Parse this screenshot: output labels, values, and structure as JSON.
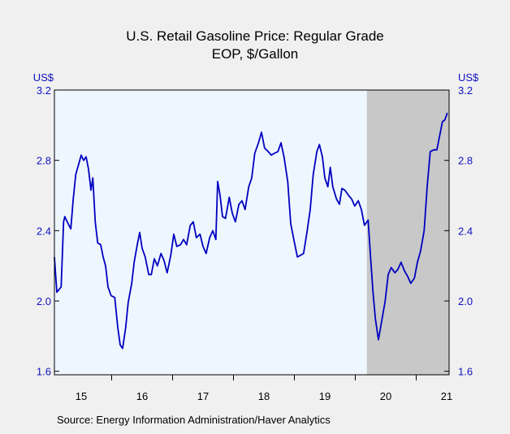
{
  "chart_data": {
    "type": "line",
    "title": "U.S. Retail Gasoline Price: Regular Grade",
    "subtitle": "EOP, $/Gallon",
    "y_unit_left": "US$",
    "y_unit_right": "US$",
    "source": "Source:  Energy Information Administration/Haver Analytics",
    "color": "#0000c0",
    "shade": {
      "start": 2020.19,
      "end": 2021.54,
      "color": "#c8c8c8"
    },
    "xlim": [
      2015.06,
      2021.54
    ],
    "ylim": [
      1.58,
      3.2
    ],
    "yticks": [
      1.6,
      {
        "value": 2,
        "label": "2.0"
      },
      2.4,
      2.8,
      3.2
    ],
    "xticks": [
      {
        "value": 2015.5,
        "label": "15"
      },
      {
        "value": 2016.5,
        "label": "16"
      },
      {
        "value": 2017.5,
        "label": "17"
      },
      {
        "value": 2018.5,
        "label": "18"
      },
      {
        "value": 2019.5,
        "label": "19"
      },
      {
        "value": 2020.5,
        "label": "20"
      },
      {
        "value": 2021.5,
        "label": "21"
      }
    ],
    "x": [
      2015.06,
      2015.1,
      2015.17,
      2015.21,
      2015.23,
      2015.27,
      2015.33,
      2015.37,
      2015.41,
      2015.46,
      2015.5,
      2015.54,
      2015.58,
      2015.62,
      2015.66,
      2015.69,
      2015.73,
      2015.77,
      2015.82,
      2015.86,
      2015.9,
      2015.94,
      2015.99,
      2016.05,
      2016.1,
      2016.14,
      2016.18,
      2016.23,
      2016.27,
      2016.33,
      2016.37,
      2016.42,
      2016.46,
      2016.5,
      2016.55,
      2016.61,
      2016.65,
      2016.7,
      2016.75,
      2016.81,
      2016.86,
      2016.91,
      2016.97,
      2017.02,
      2017.07,
      2017.13,
      2017.18,
      2017.23,
      2017.29,
      2017.34,
      2017.39,
      2017.45,
      2017.5,
      2017.55,
      2017.61,
      2017.66,
      2017.71,
      2017.74,
      2017.78,
      2017.82,
      2017.87,
      2017.93,
      2017.98,
      2018.03,
      2018.09,
      2018.14,
      2018.19,
      2018.25,
      2018.3,
      2018.35,
      2018.41,
      2018.46,
      2018.51,
      2018.57,
      2018.62,
      2018.67,
      2018.73,
      2018.78,
      2018.83,
      2018.89,
      2018.94,
      2018.99,
      2019.05,
      2019.1,
      2019.15,
      2019.21,
      2019.26,
      2019.31,
      2019.37,
      2019.41,
      2019.46,
      2019.5,
      2019.55,
      2019.59,
      2019.63,
      2019.69,
      2019.74,
      2019.78,
      2019.83,
      2019.89,
      2019.94,
      2019.99,
      2020.05,
      2020.1,
      2020.15,
      2020.21,
      2020.25,
      2020.29,
      2020.33,
      2020.38,
      2020.43,
      2020.49,
      2020.54,
      2020.59,
      2020.65,
      2020.7,
      2020.75,
      2020.81,
      2020.86,
      2020.91,
      2020.97,
      2021.02,
      2021.07,
      2021.13,
      2021.18,
      2021.23,
      2021.29,
      2021.34,
      2021.39,
      2021.43,
      2021.47,
      2021.51
    ],
    "values": [
      2.25,
      2.05,
      2.08,
      2.45,
      2.48,
      2.45,
      2.41,
      2.58,
      2.72,
      2.78,
      2.83,
      2.8,
      2.82,
      2.75,
      2.63,
      2.7,
      2.45,
      2.33,
      2.32,
      2.25,
      2.2,
      2.08,
      2.03,
      2.02,
      1.85,
      1.75,
      1.73,
      1.85,
      1.99,
      2.1,
      2.22,
      2.32,
      2.39,
      2.3,
      2.25,
      2.15,
      2.15,
      2.24,
      2.2,
      2.27,
      2.23,
      2.16,
      2.26,
      2.38,
      2.31,
      2.32,
      2.35,
      2.32,
      2.43,
      2.45,
      2.36,
      2.38,
      2.31,
      2.27,
      2.36,
      2.4,
      2.35,
      2.68,
      2.6,
      2.48,
      2.47,
      2.59,
      2.5,
      2.45,
      2.55,
      2.57,
      2.52,
      2.65,
      2.7,
      2.84,
      2.9,
      2.96,
      2.87,
      2.85,
      2.83,
      2.84,
      2.85,
      2.9,
      2.82,
      2.68,
      2.44,
      2.35,
      2.25,
      2.26,
      2.27,
      2.4,
      2.52,
      2.72,
      2.85,
      2.89,
      2.82,
      2.7,
      2.65,
      2.76,
      2.65,
      2.58,
      2.55,
      2.64,
      2.63,
      2.6,
      2.58,
      2.54,
      2.57,
      2.52,
      2.43,
      2.46,
      2.25,
      2.05,
      1.9,
      1.78,
      1.88,
      2.0,
      2.15,
      2.19,
      2.16,
      2.18,
      2.22,
      2.17,
      2.14,
      2.1,
      2.13,
      2.22,
      2.28,
      2.4,
      2.65,
      2.85,
      2.86,
      2.86,
      2.95,
      3.02,
      3.03,
      3.07
    ]
  }
}
